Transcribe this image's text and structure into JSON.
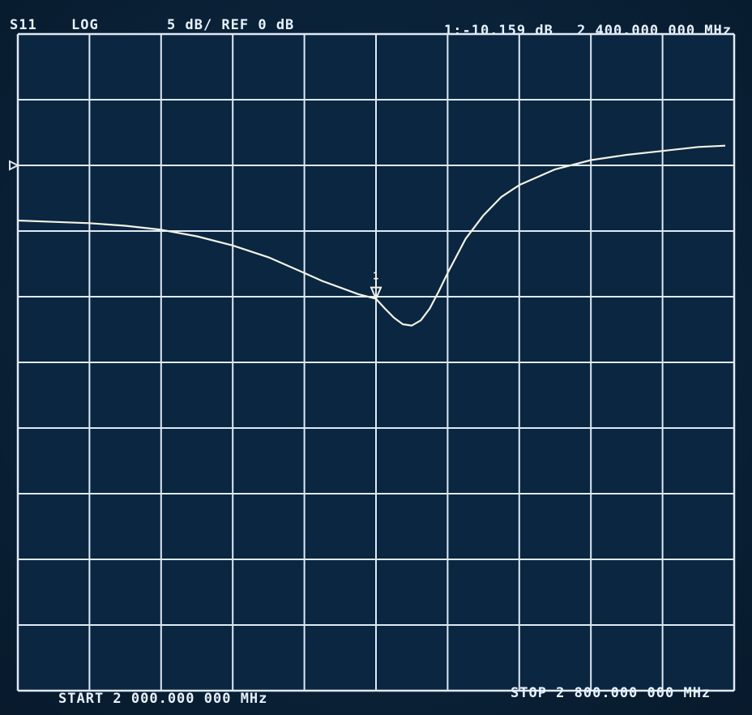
{
  "header": {
    "parameter": "S11",
    "format": "LOG",
    "scale": "5 dB/ REF 0 dB",
    "marker_readout": "1:-10.159 dB",
    "marker_frequency": "2 400.000 000 MHz"
  },
  "footer": {
    "start": "START 2 000.000 000 MHz",
    "stop": "STOP 2 800.000 000 MHz"
  },
  "colors": {
    "grid": "#dfe9f5",
    "trace": "#f2f2e6",
    "background": "#0b2640"
  },
  "chart_data": {
    "type": "line",
    "x_unit": "MHz",
    "y_unit": "dB",
    "xlim": [
      2000,
      2800
    ],
    "ylim": [
      -40,
      10
    ],
    "reference_level": 0,
    "x_divisions": 10,
    "y_divisions": 10,
    "grid": true,
    "series": [
      {
        "x": [
          2000,
          2040,
          2080,
          2120,
          2160,
          2200,
          2240,
          2280,
          2320,
          2340,
          2360,
          2380,
          2400,
          2410,
          2420,
          2430,
          2440,
          2450,
          2460,
          2470,
          2480,
          2500,
          2520,
          2540,
          2560,
          2600,
          2640,
          2680,
          2720,
          2760,
          2790
        ],
        "y": [
          -4.2,
          -4.3,
          -4.4,
          -4.6,
          -4.9,
          -5.4,
          -6.1,
          -7.0,
          -8.2,
          -8.8,
          -9.3,
          -9.8,
          -10.16,
          -10.9,
          -11.6,
          -12.1,
          -12.2,
          -11.8,
          -10.9,
          -9.6,
          -8.2,
          -5.6,
          -3.8,
          -2.4,
          -1.5,
          -0.3,
          0.4,
          0.8,
          1.1,
          1.4,
          1.5
        ]
      }
    ],
    "markers": [
      {
        "label": "1",
        "x": 2400,
        "y": -10.159
      }
    ]
  }
}
